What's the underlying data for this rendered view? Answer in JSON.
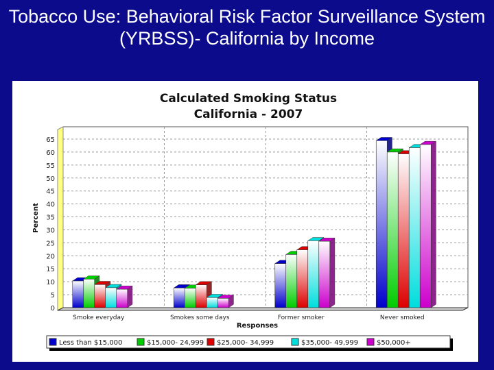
{
  "slide_title": "Tobacco Use: Behavioral Risk Factor Surveillance System (YRBSS)- California by Income",
  "chart_data": {
    "type": "bar",
    "style": "3d-grouped",
    "title_lines": [
      "Calculated Smoking Status",
      "California - 2007"
    ],
    "xlabel": "Responses",
    "ylabel": "Percent",
    "ylim": [
      0,
      65
    ],
    "yticks": [
      0,
      5,
      10,
      15,
      20,
      25,
      30,
      35,
      40,
      45,
      50,
      55,
      60,
      65
    ],
    "grid": true,
    "legend_position": "bottom",
    "categories": [
      "Smoke everyday",
      "Smokes some days",
      "Former smoker",
      "Never smoked"
    ],
    "series": [
      {
        "name": "Less than $15,000",
        "color": "#0000cc",
        "values": [
          10.3,
          7.6,
          17.0,
          64.4
        ]
      },
      {
        "name": "$15,000- 24,999",
        "color": "#00cc00",
        "values": [
          11.0,
          7.5,
          20.5,
          60.0
        ]
      },
      {
        "name": "$25,000- 34,999",
        "color": "#dd0000",
        "values": [
          8.9,
          8.8,
          22.3,
          59.3
        ]
      },
      {
        "name": "$35,000- 49,999",
        "color": "#00dddd",
        "values": [
          7.7,
          3.9,
          25.8,
          61.7
        ]
      },
      {
        "name": "$50,000+",
        "color": "#cc00cc",
        "values": [
          7.1,
          3.6,
          25.6,
          62.9
        ]
      }
    ]
  }
}
